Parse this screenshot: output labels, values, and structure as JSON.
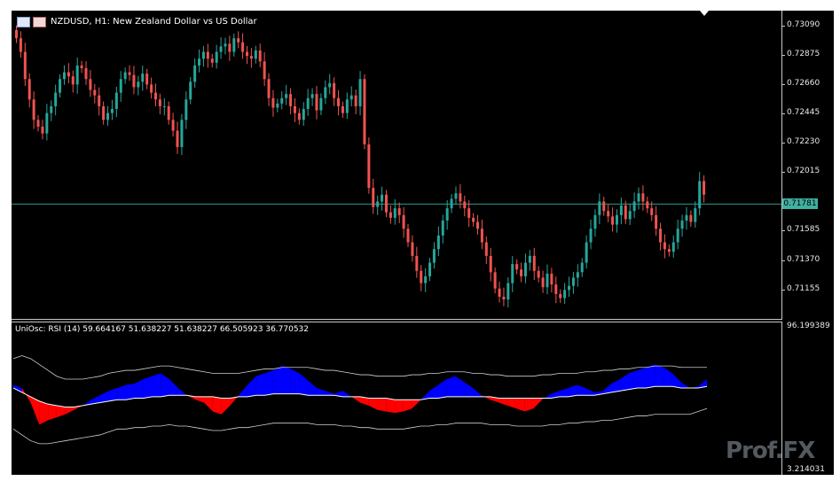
{
  "chart_title": "NZDUSD, H1:  New Zealand Dollar vs US Dollar",
  "osc_title": "UniOsc: RSI (14) 59.664167 51.638227 51.638227 66.505923 36.770532",
  "price_axis": [
    "0.73090",
    "0.72875",
    "0.72660",
    "0.72445",
    "0.72230",
    "0.72015",
    "0.71585",
    "0.71370",
    "0.71155"
  ],
  "current_price": "0.71781",
  "osc_axis_top": "96.199389",
  "osc_axis_bottom": "3.214031",
  "watermark_text": "Prof.FX",
  "colors": {
    "background": "#000000",
    "bull": "#26a69a",
    "bear": "#ef5350",
    "bid_line": "#2a9d8f",
    "osc_up": "#0000ff",
    "osc_down": "#ff0000",
    "bands": "#d0d0d0"
  },
  "icons": [
    "chart-window-icon",
    "symbol-flag-icon",
    "shift-marker-icon"
  ],
  "chart_data": [
    {
      "type": "candlestick",
      "symbol": "NZDUSD",
      "timeframe": "H1",
      "ylim": [
        0.7095,
        0.7319
      ],
      "current_price": 0.71781,
      "close": [
        0.73,
        0.729,
        0.727,
        0.7255,
        0.724,
        0.7235,
        0.723,
        0.7245,
        0.725,
        0.726,
        0.727,
        0.7275,
        0.7272,
        0.7266,
        0.728,
        0.7278,
        0.727,
        0.7262,
        0.7258,
        0.725,
        0.724,
        0.7245,
        0.7248,
        0.726,
        0.727,
        0.7275,
        0.7273,
        0.7264,
        0.7268,
        0.7274,
        0.7266,
        0.726,
        0.7255,
        0.725,
        0.725,
        0.724,
        0.7232,
        0.722,
        0.724,
        0.7255,
        0.7268,
        0.728,
        0.7285,
        0.729,
        0.7285,
        0.7282,
        0.729,
        0.7294,
        0.7296,
        0.729,
        0.73,
        0.7297,
        0.729,
        0.7287,
        0.7285,
        0.7291,
        0.7283,
        0.727,
        0.7256,
        0.7249,
        0.7252,
        0.7256,
        0.7259,
        0.725,
        0.7245,
        0.724,
        0.7248,
        0.7256,
        0.7259,
        0.7247,
        0.7256,
        0.7264,
        0.7267,
        0.7256,
        0.725,
        0.7245,
        0.7255,
        0.7258,
        0.725,
        0.727,
        0.7222,
        0.719,
        0.7176,
        0.718,
        0.7185,
        0.7172,
        0.7168,
        0.7175,
        0.717,
        0.716,
        0.715,
        0.714,
        0.7129,
        0.712,
        0.7125,
        0.7135,
        0.7145,
        0.7155,
        0.7166,
        0.7175,
        0.7182,
        0.7186,
        0.718,
        0.7175,
        0.7168,
        0.7165,
        0.716,
        0.715,
        0.714,
        0.7128,
        0.7116,
        0.711,
        0.7108,
        0.712,
        0.7134,
        0.713,
        0.7125,
        0.7135,
        0.714,
        0.7129,
        0.7124,
        0.7117,
        0.7127,
        0.7119,
        0.7112,
        0.7109,
        0.7115,
        0.7118,
        0.7124,
        0.7128,
        0.7135,
        0.715,
        0.716,
        0.717,
        0.718,
        0.7173,
        0.7169,
        0.7163,
        0.717,
        0.7177,
        0.7167,
        0.7173,
        0.718,
        0.7186,
        0.718,
        0.7175,
        0.717,
        0.716,
        0.715,
        0.7145,
        0.7143,
        0.715,
        0.716,
        0.7166,
        0.717,
        0.7165,
        0.7175,
        0.7195,
        0.7185
      ]
    },
    {
      "type": "area",
      "name": "UniOsc: RSI (14)",
      "ylim": [
        3.214031,
        96.199389
      ],
      "last_values": [
        59.664167,
        51.638227,
        51.638227,
        66.505923,
        36.770532
      ],
      "rsi": [
        62,
        60,
        50,
        35,
        38,
        40,
        42,
        45,
        48,
        52,
        55,
        58,
        60,
        62,
        63,
        66,
        68,
        70,
        66,
        60,
        55,
        52,
        50,
        44,
        42,
        48,
        55,
        62,
        68,
        70,
        72,
        75,
        73,
        70,
        65,
        60,
        58,
        56,
        58,
        54,
        50,
        48,
        45,
        44,
        43,
        44,
        46,
        52,
        58,
        62,
        66,
        68,
        64,
        60,
        55,
        52,
        50,
        48,
        46,
        44,
        46,
        52,
        56,
        58,
        60,
        62,
        60,
        57,
        58,
        63,
        66,
        70,
        72,
        74,
        76,
        74,
        70,
        64,
        60,
        61,
        66
      ],
      "signal": [
        60,
        57,
        54,
        51,
        49,
        48,
        47,
        47,
        48,
        49,
        50,
        51,
        52,
        52,
        53,
        53,
        54,
        54,
        55,
        55,
        55,
        54,
        54,
        54,
        53,
        53,
        54,
        54,
        55,
        55,
        56,
        56,
        56,
        56,
        55,
        55,
        55,
        55,
        54,
        54,
        54,
        53,
        53,
        53,
        52,
        52,
        52,
        52,
        53,
        53,
        54,
        54,
        54,
        54,
        54,
        54,
        53,
        53,
        53,
        53,
        53,
        53,
        53,
        54,
        54,
        55,
        55,
        55,
        56,
        57,
        58,
        59,
        60,
        60,
        61,
        61,
        61,
        60,
        60,
        60,
        61
      ],
      "upper_band": [
        80,
        82,
        80,
        76,
        72,
        68,
        66,
        66,
        66,
        67,
        68,
        70,
        71,
        72,
        72,
        73,
        74,
        75,
        75,
        74,
        73,
        72,
        71,
        70,
        70,
        70,
        70,
        71,
        72,
        73,
        73,
        74,
        74,
        74,
        74,
        73,
        72,
        72,
        71,
        70,
        69,
        69,
        68,
        68,
        68,
        68,
        69,
        69,
        70,
        70,
        71,
        71,
        71,
        70,
        70,
        69,
        69,
        68,
        68,
        68,
        68,
        69,
        69,
        70,
        70,
        70,
        71,
        71,
        72,
        72,
        73,
        73,
        74,
        74,
        75,
        75,
        75,
        74,
        74,
        74,
        74
      ],
      "lower_band": [
        32,
        28,
        24,
        22,
        22,
        23,
        24,
        25,
        26,
        27,
        28,
        30,
        32,
        32,
        33,
        33,
        34,
        34,
        35,
        34,
        34,
        33,
        32,
        31,
        31,
        32,
        33,
        33,
        34,
        35,
        36,
        36,
        36,
        36,
        36,
        35,
        35,
        35,
        34,
        34,
        33,
        33,
        32,
        32,
        32,
        32,
        33,
        34,
        34,
        35,
        35,
        36,
        36,
        36,
        36,
        35,
        35,
        35,
        34,
        34,
        34,
        34,
        35,
        35,
        36,
        36,
        37,
        37,
        38,
        38,
        39,
        40,
        41,
        41,
        42,
        42,
        42,
        42,
        42,
        44,
        46
      ]
    }
  ]
}
